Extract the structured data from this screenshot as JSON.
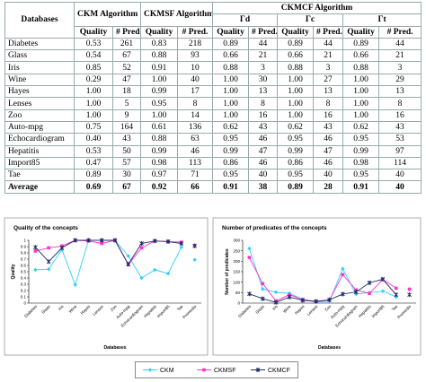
{
  "table": {
    "corner": "Databases",
    "groups": [
      "CKM Algorithm",
      "CKMSF Algorithm",
      "CKMCF Algorithm"
    ],
    "subgroups": [
      "Γd",
      "Γc",
      "Γt"
    ],
    "subheaders": [
      "Quality",
      "# Pred.",
      "Quality",
      "# Pred.",
      "Quality",
      "# Pred.",
      "Quality",
      "# Pred.",
      "Quality",
      "# Pred."
    ],
    "rows": [
      [
        "Diabetes",
        "0.53",
        "261",
        "0.83",
        "218",
        "0.89",
        "44",
        "0.89",
        "44",
        "0.89",
        "44"
      ],
      [
        "Glass",
        "0.54",
        "67",
        "0.88",
        "93",
        "0.66",
        "21",
        "0.66",
        "21",
        "0.66",
        "21"
      ],
      [
        "Iris",
        "0.85",
        "52",
        "0.91",
        "10",
        "0.88",
        "3",
        "0.88",
        "3",
        "0.88",
        "3"
      ],
      [
        "Wine",
        "0.29",
        "47",
        "1.00",
        "40",
        "1.00",
        "30",
        "1.00",
        "27",
        "1.00",
        "29"
      ],
      [
        "Hayes",
        "1.00",
        "18",
        "0.99",
        "17",
        "1.00",
        "13",
        "1.00",
        "13",
        "1.00",
        "13"
      ],
      [
        "Lenses",
        "1.00",
        "5",
        "0.95",
        "8",
        "1.00",
        "8",
        "1.00",
        "8",
        "1.00",
        "8"
      ],
      [
        "Zoo",
        "1.00",
        "9",
        "1.00",
        "14",
        "1.00",
        "16",
        "1.00",
        "16",
        "1.00",
        "16"
      ],
      [
        "Auto-mpg",
        "0.75",
        "164",
        "0.61",
        "136",
        "0.62",
        "43",
        "0.62",
        "43",
        "0.62",
        "43"
      ],
      [
        "Echocardiogram",
        "0.40",
        "43",
        "0.88",
        "63",
        "0.95",
        "46",
        "0.95",
        "46",
        "0.95",
        "53"
      ],
      [
        "Hepatitis",
        "0.53",
        "50",
        "0.99",
        "46",
        "0.99",
        "47",
        "0.99",
        "47",
        "0.99",
        "97"
      ],
      [
        "Import85",
        "0.47",
        "57",
        "0.98",
        "113",
        "0.86",
        "46",
        "0.86",
        "46",
        "0.98",
        "114"
      ],
      [
        "Tae",
        "0.89",
        "30",
        "0.97",
        "71",
        "0.95",
        "40",
        "0.95",
        "40",
        "0.95",
        "40"
      ],
      [
        "Average",
        "0.69",
        "67",
        "0.92",
        "66",
        "0.91",
        "38",
        "0.89",
        "28",
        "0.91",
        "40"
      ]
    ]
  },
  "chart_data": [
    {
      "type": "line",
      "title": "Quality of the concepts",
      "y_label": "Quality",
      "x_label": "Databases",
      "categories": [
        "Diabetes",
        "Glass",
        "Iris",
        "Wine",
        "Hayes",
        "Lenses",
        "Zoo",
        "Auto-mpg",
        "Echocardiogram",
        "Hepatitis",
        "Import85",
        "Tae",
        "Promedio"
      ],
      "isolated_last": true,
      "ylim": [
        0,
        1
      ],
      "yticks": [
        0,
        0.1,
        0.2,
        0.3,
        0.4,
        0.5,
        0.6,
        0.7,
        0.8,
        0.9,
        1
      ],
      "series": [
        {
          "name": "CKM",
          "color": "#33ccff",
          "marker": "diamond",
          "values": [
            0.53,
            0.54,
            0.85,
            0.29,
            1.0,
            1.0,
            1.0,
            0.75,
            0.4,
            0.53,
            0.47,
            0.89,
            0.69
          ]
        },
        {
          "name": "CKMSF",
          "color": "#ff33cc",
          "marker": "square",
          "values": [
            0.83,
            0.88,
            0.91,
            1.0,
            0.99,
            0.95,
            1.0,
            0.61,
            0.88,
            0.99,
            0.98,
            0.97,
            0.92
          ]
        },
        {
          "name": "CKMCF",
          "color": "#1f2d6b",
          "marker": "star",
          "values": [
            0.89,
            0.66,
            0.88,
            1.0,
            1.0,
            1.0,
            1.0,
            0.62,
            0.95,
            0.99,
            0.98,
            0.95,
            0.91
          ]
        }
      ]
    },
    {
      "type": "line",
      "title": "Number of predicates of the concepts",
      "y_label": "Number of predicates",
      "x_label": "Databases",
      "categories": [
        "Diabetes",
        "Glass",
        "Iris",
        "Wine",
        "Hayes",
        "Lenses",
        "Zoo",
        "Auto-mpg",
        "Echocardiogram",
        "Hepatitis",
        "Import85",
        "Tae",
        "Promedio"
      ],
      "isolated_last": true,
      "ylim": [
        0,
        300
      ],
      "yticks": [
        0,
        50,
        100,
        150,
        200,
        250,
        300
      ],
      "series": [
        {
          "name": "CKM",
          "color": "#33ccff",
          "marker": "diamond",
          "values": [
            261,
            67,
            52,
            47,
            18,
            5,
            9,
            164,
            43,
            50,
            57,
            30,
            67
          ]
        },
        {
          "name": "CKMSF",
          "color": "#ff33cc",
          "marker": "square",
          "values": [
            218,
            93,
            10,
            40,
            17,
            8,
            14,
            136,
            63,
            46,
            113,
            71,
            66
          ]
        },
        {
          "name": "CKMCF",
          "color": "#1f2d6b",
          "marker": "star",
          "values": [
            44,
            21,
            3,
            29,
            13,
            8,
            16,
            43,
            53,
            97,
            114,
            40,
            40
          ]
        }
      ]
    }
  ]
}
